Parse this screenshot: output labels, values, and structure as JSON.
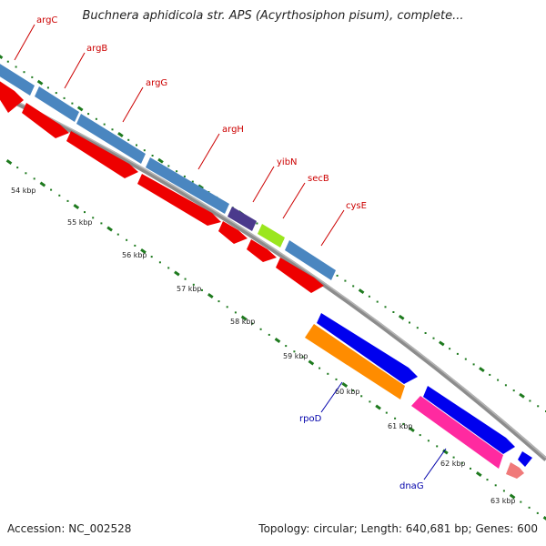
{
  "title": "Buchnera aphidicola str. APS (Acyrthosiphon pisum), complete...",
  "footer": {
    "accession": "Accession: NC_002528",
    "summary": "Topology: circular; Length: 640,681 bp; Genes: 600"
  },
  "colors": {
    "background": "#ffffff",
    "backbone": "#8c8c8c",
    "dots": "#1e7a1e",
    "forward_gene_label": "#cc0000",
    "reverse_gene_label": "#0000aa",
    "orf_red": "#ee0000",
    "gene_steelblue": "#4a86c0",
    "rpoD_orange": "#ff8c00",
    "dnaG_pink": "#ff2aa0",
    "orf_blue": "#0000ee"
  },
  "axis_ticks": [
    {
      "label": "54 kbp",
      "kbp": 54
    },
    {
      "label": "55 kbp",
      "kbp": 55
    },
    {
      "label": "56 kbp",
      "kbp": 56
    },
    {
      "label": "57 kbp",
      "kbp": 57
    },
    {
      "label": "58 kbp",
      "kbp": 58
    },
    {
      "label": "59 kbp",
      "kbp": 59
    },
    {
      "label": "60 kbp",
      "kbp": 60
    },
    {
      "label": "61 kbp",
      "kbp": 61
    },
    {
      "label": "62 kbp",
      "kbp": 62
    },
    {
      "label": "63 kbp",
      "kbp": 63
    }
  ],
  "genes": [
    {
      "label": "argC",
      "strand": "forward",
      "color": "#4a86c0"
    },
    {
      "label": "argB",
      "strand": "forward",
      "color": "#4a86c0"
    },
    {
      "label": "argG",
      "strand": "forward",
      "color": "#4a86c0"
    },
    {
      "label": "argH",
      "strand": "forward",
      "color": "#4a86c0"
    },
    {
      "label": "yibN",
      "strand": "forward",
      "color": "#4b3a8c"
    },
    {
      "label": "secB",
      "strand": "forward",
      "color": "#9be61e"
    },
    {
      "label": "cysE",
      "strand": "forward",
      "color": "#4a86c0"
    },
    {
      "label": "rpoD",
      "strand": "reverse",
      "color": "#ff8c00"
    },
    {
      "label": "dnaG",
      "strand": "reverse",
      "color": "#ff2aa0"
    }
  ]
}
